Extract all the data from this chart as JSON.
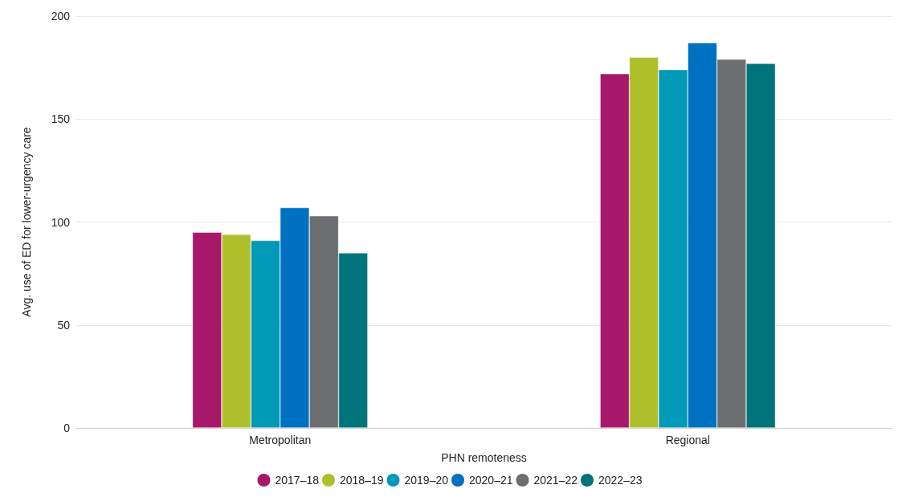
{
  "chart_data": {
    "type": "bar",
    "xlabel": "PHN remoteness",
    "ylabel": "Avg. use of ED for lower-urgency care",
    "categories": [
      "Metropolitan",
      "Regional"
    ],
    "series": [
      {
        "name": "2017–18",
        "color": "#a8186a",
        "values": [
          95,
          172
        ]
      },
      {
        "name": "2018–19",
        "color": "#afbf2c",
        "values": [
          94,
          180
        ]
      },
      {
        "name": "2019–20",
        "color": "#0099b8",
        "values": [
          91,
          174
        ]
      },
      {
        "name": "2020–21",
        "color": "#0070c0",
        "values": [
          107,
          187
        ]
      },
      {
        "name": "2021–22",
        "color": "#6d6e71",
        "values": [
          103,
          179
        ]
      },
      {
        "name": "2022–23",
        "color": "#00747a",
        "values": [
          85,
          177
        ]
      }
    ],
    "ylim": [
      0,
      200
    ],
    "yticks": [
      0,
      50,
      100,
      150,
      200
    ],
    "grid": "y",
    "legend": "bottom"
  }
}
